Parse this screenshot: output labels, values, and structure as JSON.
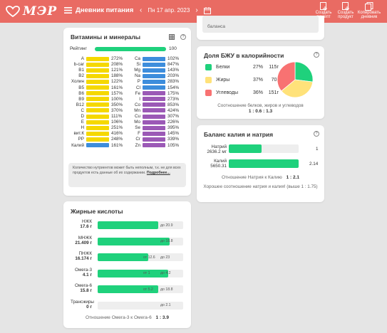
{
  "header": {
    "logo_text": "МЭР",
    "title": "Дневник питания",
    "date": "Пн 17 апр. 2023",
    "buttons": [
      {
        "line1": "Создать",
        "line2": "рецепт"
      },
      {
        "line1": "Создать",
        "line2": "продукт"
      },
      {
        "line1": "Копировать",
        "line2": "дневник"
      }
    ]
  },
  "vitamins": {
    "title": "Витамины и минералы",
    "rating_label": "Рейтинг",
    "rating_value": 100,
    "left": [
      {
        "n": "A",
        "v": "272%",
        "c": "#f5d800"
      },
      {
        "n": "b-car",
        "v": "208%",
        "c": "#f5d800"
      },
      {
        "n": "B1",
        "v": "121%",
        "c": "#f5d800"
      },
      {
        "n": "B2",
        "v": "188%",
        "c": "#f5d800"
      },
      {
        "n": "Холин",
        "v": "122%",
        "c": "#f5d800"
      },
      {
        "n": "B5",
        "v": "161%",
        "c": "#f5d800"
      },
      {
        "n": "B6",
        "v": "157%",
        "c": "#f5d800"
      },
      {
        "n": "B9",
        "v": "100%",
        "c": "#f5d800"
      },
      {
        "n": "B12",
        "v": "350%",
        "c": "#f5d800"
      },
      {
        "n": "C",
        "v": "370%",
        "c": "#f5d800"
      },
      {
        "n": "D",
        "v": "111%",
        "c": "#f5d800"
      },
      {
        "n": "E",
        "v": "106%",
        "c": "#f5d800"
      },
      {
        "n": "H",
        "v": "251%",
        "c": "#f5d800"
      },
      {
        "n": "вит.К",
        "v": "416%",
        "c": "#f5d800"
      },
      {
        "n": "PP",
        "v": "248%",
        "c": "#f5d800"
      },
      {
        "n": "Калий",
        "v": "161%",
        "c": "#3d8ddc"
      }
    ],
    "right": [
      {
        "n": "Ca",
        "v": "102%",
        "c": "#3d8ddc"
      },
      {
        "n": "Si",
        "v": "847%",
        "c": "#3d8ddc"
      },
      {
        "n": "Mg",
        "v": "143%",
        "c": "#3d8ddc"
      },
      {
        "n": "Na",
        "v": "203%",
        "c": "#3d8ddc"
      },
      {
        "n": "P",
        "v": "283%",
        "c": "#3d8ddc"
      },
      {
        "n": "Cl",
        "v": "154%",
        "c": "#3d8ddc"
      },
      {
        "n": "Fe",
        "v": "175%",
        "c": "#9b59b6"
      },
      {
        "n": "I",
        "v": "273%",
        "c": "#9b59b6"
      },
      {
        "n": "Co",
        "v": "853%",
        "c": "#9b59b6"
      },
      {
        "n": "Mn",
        "v": "424%",
        "c": "#9b59b6"
      },
      {
        "n": "Cu",
        "v": "307%",
        "c": "#9b59b6"
      },
      {
        "n": "Mo",
        "v": "226%",
        "c": "#9b59b6"
      },
      {
        "n": "Se",
        "v": "395%",
        "c": "#9b59b6"
      },
      {
        "n": "F",
        "v": "145%",
        "c": "#9b59b6"
      },
      {
        "n": "Cr",
        "v": "339%",
        "c": "#9b59b6"
      },
      {
        "n": "Zn",
        "v": "105%",
        "c": "#9b59b6"
      }
    ],
    "note": "Количество нутриентов может быть неполным, т.к. не для всех продуктов есть данные об их содержании.",
    "note_link": "Подробнее..."
  },
  "fatty": {
    "title": "Жирные кислоты",
    "rows": [
      {
        "label": "НЖК",
        "value": "17.6 г",
        "fill": 0.84,
        "tags": [
          "до 20.9"
        ]
      },
      {
        "label": "МНЖК",
        "value": "21.409 г",
        "fill": 1.0,
        "tags": [
          "до 18.8"
        ]
      },
      {
        "label": "ПНЖК",
        "value": "16.174 г",
        "fill": 0.7,
        "tags": [
          "от 12.6",
          "до 23"
        ]
      },
      {
        "label": "Омега-3",
        "value": "4.1 г",
        "fill": 0.98,
        "tags": [
          "от 1",
          "до 4.2"
        ]
      },
      {
        "label": "Омега-6",
        "value": "15.8 г",
        "fill": 0.84,
        "tags": [
          "от 5.2",
          "до 18.8"
        ]
      },
      {
        "label": "Трансжиры",
        "value": "0 г",
        "fill": 0,
        "tags": [
          "до 2.1"
        ]
      }
    ],
    "ratio_text": "Отношение Омега-3 к Омега-6",
    "ratio_value": "1 : 3.9"
  },
  "top_card": {
    "text": "баланса"
  },
  "bzu": {
    "title": "Доля БЖУ в калорийности",
    "items": [
      {
        "name": "Белки",
        "pct": "27%",
        "grams": "115г",
        "color": "#1fd17c",
        "share": 27
      },
      {
        "name": "Жиры",
        "pct": "37%",
        "grams": "70г",
        "color": "#ffe27a",
        "share": 37
      },
      {
        "name": "Углеводы",
        "pct": "36%",
        "grams": "151г",
        "color": "#f87272",
        "share": 36
      }
    ],
    "caption": "Соотношение белков, жиров и углеводов",
    "ratio": "1 : 0.6 : 1.3"
  },
  "kna": {
    "title": "Баланс калия и натрия",
    "sodium_label": "Натрий",
    "sodium_value": "2636.2 мг",
    "sodium_ratio": "1",
    "sodium_fill": 0.47,
    "potassium_label": "Калий",
    "potassium_value": "5650.31",
    "potassium_ratio": "2.14",
    "potassium_fill": 1.0,
    "ratio_text": "Отношение Натрия к Калию",
    "ratio_value": "1 : 2.1",
    "comment": "Хорошее соотношение натрия и калия! (выше 1 : 1.75)"
  },
  "colors": {
    "accent": "#e96b63",
    "green": "#1fd17c"
  }
}
